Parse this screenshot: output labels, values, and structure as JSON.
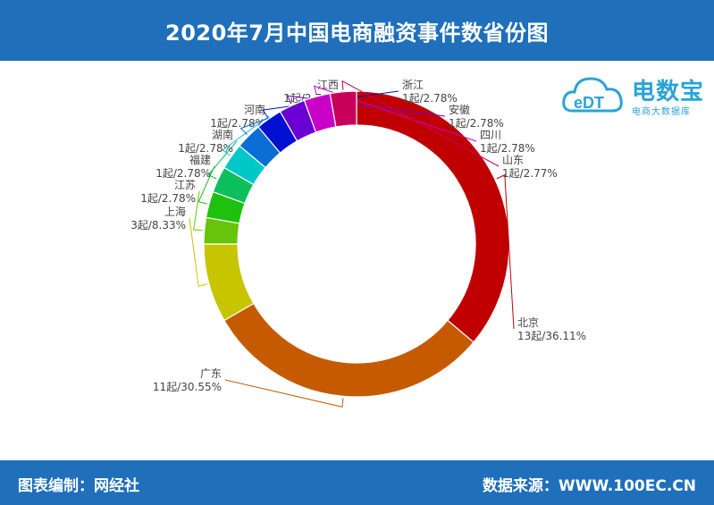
{
  "title": "2020年7月中国电商融资事件数省份图",
  "footer": {
    "left": "图表编制：网经社",
    "right": "数据来源：WWW.100EC.CN"
  },
  "logo": {
    "mark": "eDT",
    "brand": "电数宝",
    "tagline": "电商大数据库"
  },
  "chart_data": {
    "type": "pie",
    "donut": true,
    "slices": [
      {
        "name": "北京",
        "count": 13,
        "label": "13起/36.11%",
        "percent": 36.11,
        "color": "#c00000"
      },
      {
        "name": "广东",
        "count": 11,
        "label": "11起/30.55%",
        "percent": 30.55,
        "color": "#c55a00"
      },
      {
        "name": "上海",
        "count": 3,
        "label": "3起/8.33%",
        "percent": 8.33,
        "color": "#c7c400"
      },
      {
        "name": "江苏",
        "count": 1,
        "label": "1起/2.78%",
        "percent": 2.78,
        "color": "#66c40a"
      },
      {
        "name": "福建",
        "count": 1,
        "label": "1起/2.78%",
        "percent": 2.78,
        "color": "#1ec10e"
      },
      {
        "name": "湖南",
        "count": 1,
        "label": "1起/2.78%",
        "percent": 2.78,
        "color": "#0ebf5e"
      },
      {
        "name": "河南",
        "count": 1,
        "label": "1起/2.78%",
        "percent": 2.78,
        "color": "#00c8c8"
      },
      {
        "name": "江西",
        "count": 1,
        "label": "1起/2.78%",
        "percent": 2.78,
        "color": "#0a6ed6"
      },
      {
        "name": "浙江",
        "count": 1,
        "label": "1起/2.78%",
        "percent": 2.78,
        "color": "#0010d0"
      },
      {
        "name": "安徽",
        "count": 1,
        "label": "1起/2.78%",
        "percent": 2.78,
        "color": "#6a00d2"
      },
      {
        "name": "四川",
        "count": 1,
        "label": "1起/2.78%",
        "percent": 2.78,
        "color": "#c800c8"
      },
      {
        "name": "山东",
        "count": 1,
        "label": "1起/2.77%",
        "percent": 2.77,
        "color": "#c8005a"
      }
    ]
  }
}
